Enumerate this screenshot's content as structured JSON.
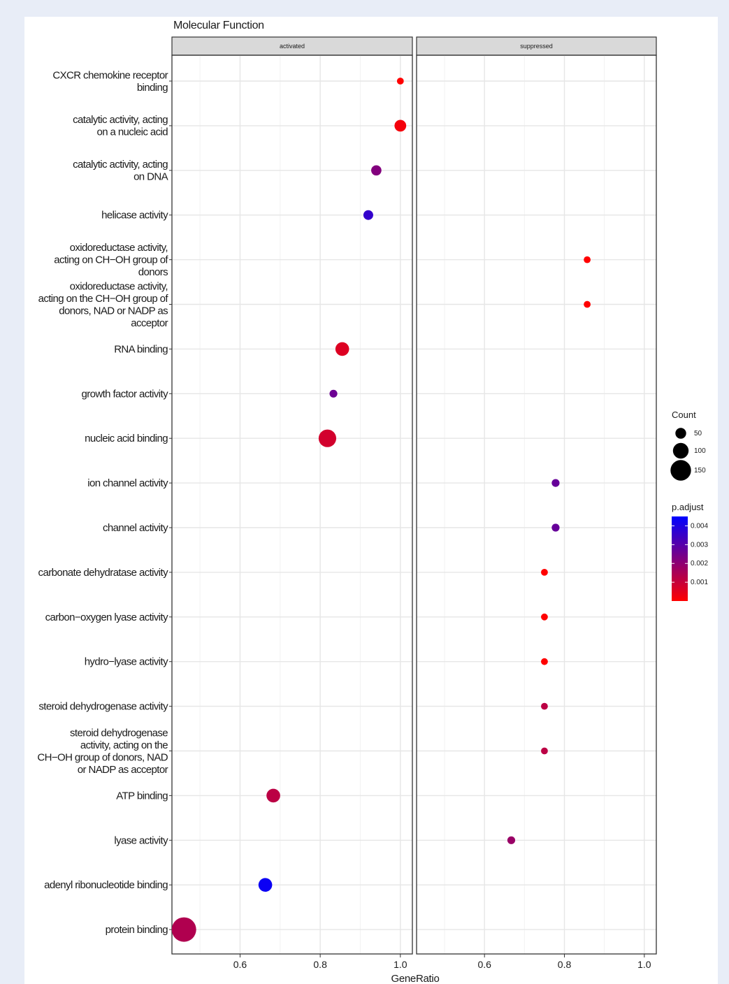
{
  "chart_data": {
    "type": "scatter",
    "title": "Molecular Function",
    "xlabel": "GeneRatio",
    "ylabel": "",
    "panels": [
      "activated",
      "suppressed"
    ],
    "xlim": [
      0.43,
      1.03
    ],
    "xticks": [
      0.6,
      0.8,
      1.0
    ],
    "xtick_labels": [
      "0.6",
      "0.8",
      "1.0"
    ],
    "grid": true,
    "legend_position": "right",
    "categories": [
      "CXCR chemokine receptor binding",
      "catalytic activity, acting on a nucleic acid",
      "catalytic activity, acting on DNA",
      "helicase activity",
      "oxidoreductase activity, acting on CH−OH group of donors",
      "oxidoreductase activity, acting on the CH−OH group of donors, NAD or NADP as acceptor",
      "RNA binding",
      "growth factor activity",
      "nucleic acid binding",
      "ion channel activity",
      "channel activity",
      "carbonate dehydratase activity",
      "carbon−oxygen lyase activity",
      "hydro−lyase activity",
      "steroid dehydrogenase activity",
      "steroid dehydrogenase activity, acting on the CH−OH group of donors, NAD or NADP as acceptor",
      "ATP binding",
      "lyase activity",
      "adenyl ribonucleotide binding",
      "protein binding"
    ],
    "category_lines": [
      [
        "CXCR chemokine receptor",
        "binding"
      ],
      [
        "catalytic activity, acting",
        "on a nucleic acid"
      ],
      [
        "catalytic activity, acting",
        "on DNA"
      ],
      [
        "helicase activity"
      ],
      [
        "oxidoreductase activity,",
        "acting on CH−OH group of",
        "donors"
      ],
      [
        "oxidoreductase activity,",
        "acting on the CH−OH group of",
        "donors, NAD or NADP as",
        "acceptor"
      ],
      [
        "RNA binding"
      ],
      [
        "growth factor activity"
      ],
      [
        "nucleic acid binding"
      ],
      [
        "ion channel activity"
      ],
      [
        "channel activity"
      ],
      [
        "carbonate dehydratase activity"
      ],
      [
        "carbon−oxygen lyase activity"
      ],
      [
        "hydro−lyase activity"
      ],
      [
        "steroid dehydrogenase activity"
      ],
      [
        "steroid dehydrogenase",
        "activity, acting on the",
        "CH−OH group of donors, NAD",
        "or NADP as acceptor"
      ],
      [
        "ATP binding"
      ],
      [
        "lyase activity"
      ],
      [
        "adenyl ribonucleotide binding"
      ],
      [
        "protein binding"
      ]
    ],
    "points": [
      {
        "category": "CXCR chemokine receptor binding",
        "panel": "activated",
        "x": 1.0,
        "count": 10,
        "p_adjust": 0.0
      },
      {
        "category": "catalytic activity, acting on a nucleic acid",
        "panel": "activated",
        "x": 1.0,
        "count": 60,
        "p_adjust": 0.0002
      },
      {
        "category": "catalytic activity, acting on DNA",
        "panel": "activated",
        "x": 0.94,
        "count": 45,
        "p_adjust": 0.0022
      },
      {
        "category": "helicase activity",
        "panel": "activated",
        "x": 0.92,
        "count": 40,
        "p_adjust": 0.0036
      },
      {
        "category": "oxidoreductase activity, acting on CH−OH group of donors",
        "panel": "suppressed",
        "x": 0.857,
        "count": 10,
        "p_adjust": 0.0
      },
      {
        "category": "oxidoreductase activity, acting on the CH−OH group of donors, NAD or NADP as acceptor",
        "panel": "suppressed",
        "x": 0.857,
        "count": 10,
        "p_adjust": 0.0
      },
      {
        "category": "RNA binding",
        "panel": "activated",
        "x": 0.855,
        "count": 80,
        "p_adjust": 0.0006
      },
      {
        "category": "growth factor activity",
        "panel": "activated",
        "x": 0.833,
        "count": 20,
        "p_adjust": 0.0026
      },
      {
        "category": "nucleic acid binding",
        "panel": "activated",
        "x": 0.818,
        "count": 120,
        "p_adjust": 0.0008
      },
      {
        "category": "ion channel activity",
        "panel": "suppressed",
        "x": 0.778,
        "count": 20,
        "p_adjust": 0.0027
      },
      {
        "category": "channel activity",
        "panel": "suppressed",
        "x": 0.778,
        "count": 20,
        "p_adjust": 0.0027
      },
      {
        "category": "carbonate dehydratase activity",
        "panel": "suppressed",
        "x": 0.75,
        "count": 10,
        "p_adjust": 0.0
      },
      {
        "category": "carbon−oxygen lyase activity",
        "panel": "suppressed",
        "x": 0.75,
        "count": 10,
        "p_adjust": 0.0
      },
      {
        "category": "hydro−lyase activity",
        "panel": "suppressed",
        "x": 0.75,
        "count": 10,
        "p_adjust": 0.0
      },
      {
        "category": "steroid dehydrogenase activity",
        "panel": "suppressed",
        "x": 0.75,
        "count": 10,
        "p_adjust": 0.0012
      },
      {
        "category": "steroid dehydrogenase activity, acting on the CH−OH group of donors, NAD or NADP as acceptor",
        "panel": "suppressed",
        "x": 0.75,
        "count": 10,
        "p_adjust": 0.0012
      },
      {
        "category": "ATP binding",
        "panel": "activated",
        "x": 0.683,
        "count": 80,
        "p_adjust": 0.0012
      },
      {
        "category": "lyase activity",
        "panel": "suppressed",
        "x": 0.667,
        "count": 20,
        "p_adjust": 0.0018
      },
      {
        "category": "adenyl ribonucleotide binding",
        "panel": "activated",
        "x": 0.663,
        "count": 80,
        "p_adjust": 0.0043
      },
      {
        "category": "protein binding",
        "panel": "activated",
        "x": 0.46,
        "count": 190,
        "p_adjust": 0.0014
      }
    ],
    "size_legend": {
      "title": "Count",
      "values": [
        50,
        100,
        150
      ],
      "labels": [
        "50",
        "100",
        "150"
      ]
    },
    "color_legend": {
      "title": "p.adjust",
      "min": 0.0,
      "max": 0.0045,
      "ticks": [
        0.004,
        0.003,
        0.002,
        0.001
      ],
      "tick_labels": [
        "0.004",
        "0.003",
        "0.002",
        "0.001"
      ],
      "low_color": "#ff0000",
      "high_color": "#0000ff"
    }
  }
}
